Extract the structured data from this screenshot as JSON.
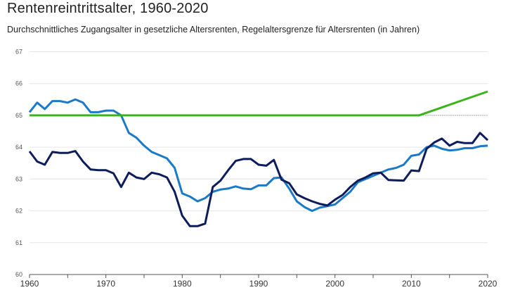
{
  "chart_data": {
    "type": "line",
    "title": "Rentenreintrittsalter, 1960-2020",
    "subtitle": "Durchschnittliches Zugangsalter in gesetzliche Altersrenten, Regelaltersgrenze für Altersrenten (in Jahren)",
    "xlabel": "",
    "ylabel": "",
    "xlim": [
      1960,
      2020
    ],
    "ylim": [
      60,
      67
    ],
    "x_ticks": [
      "1960",
      "1970",
      "1980",
      "1990",
      "2000",
      "2010",
      "2020"
    ],
    "y_ticks": [
      "60",
      "61",
      "62",
      "63",
      "64",
      "65",
      "66",
      "67"
    ],
    "grid": true,
    "x": [
      1960,
      1961,
      1962,
      1963,
      1964,
      1965,
      1966,
      1967,
      1968,
      1969,
      1970,
      1971,
      1972,
      1973,
      1974,
      1975,
      1976,
      1977,
      1978,
      1979,
      1980,
      1981,
      1982,
      1983,
      1984,
      1985,
      1986,
      1987,
      1988,
      1989,
      1990,
      1991,
      1992,
      1993,
      1994,
      1995,
      1996,
      1997,
      1998,
      1999,
      2000,
      2001,
      2002,
      2003,
      2004,
      2005,
      2006,
      2007,
      2008,
      2009,
      2010,
      2011,
      2012,
      2013,
      2014,
      2015,
      2016,
      2017,
      2018,
      2019,
      2020
    ],
    "series": [
      {
        "color": "#1a7ac8",
        "values": [
          65.1,
          65.4,
          65.2,
          65.45,
          65.45,
          65.4,
          65.5,
          65.4,
          65.1,
          65.1,
          65.15,
          65.15,
          65.0,
          64.45,
          64.3,
          64.05,
          63.85,
          63.75,
          63.65,
          63.35,
          62.55,
          62.45,
          62.3,
          62.4,
          62.6,
          62.67,
          62.7,
          62.77,
          62.7,
          62.68,
          62.8,
          62.8,
          63.03,
          63.05,
          62.7,
          62.3,
          62.12,
          62.0,
          62.1,
          62.15,
          62.2,
          62.4,
          62.6,
          62.9,
          63.0,
          63.1,
          63.2,
          63.3,
          63.35,
          63.45,
          63.73,
          63.77,
          64.0,
          64.05,
          63.95,
          63.9,
          63.92,
          63.97,
          63.97,
          64.03,
          64.05
        ]
      },
      {
        "color": "#0d1d5c",
        "values": [
          63.87,
          63.55,
          63.45,
          63.85,
          63.82,
          63.82,
          63.88,
          63.55,
          63.3,
          63.28,
          63.28,
          63.18,
          62.75,
          63.2,
          63.05,
          63.0,
          63.2,
          63.15,
          63.05,
          62.6,
          61.85,
          61.52,
          61.52,
          61.6,
          62.75,
          62.95,
          63.27,
          63.57,
          63.63,
          63.63,
          63.45,
          63.42,
          63.6,
          62.98,
          62.87,
          62.52,
          62.4,
          62.3,
          62.22,
          62.17,
          62.35,
          62.5,
          62.75,
          62.95,
          63.05,
          63.18,
          63.2,
          62.97,
          62.96,
          62.95,
          63.27,
          63.25,
          63.95,
          64.15,
          64.27,
          64.05,
          64.17,
          64.13,
          64.13,
          64.45,
          64.22
        ]
      },
      {
        "color": "#3cb31c",
        "x": [
          1960,
          2011,
          2020
        ],
        "values": [
          65.0,
          65.0,
          65.75
        ]
      }
    ],
    "reference_line": {
      "value": 65,
      "from": 2011,
      "to": 2020,
      "style": "dotted",
      "color": "#999999"
    }
  }
}
